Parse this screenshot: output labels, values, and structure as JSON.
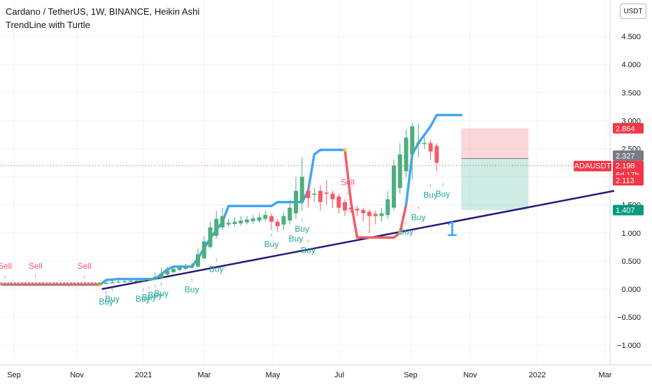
{
  "header": {
    "title": "Cardano / TetherUS, 1W, BINANCE, Heikin Ashi",
    "indicator": "TrendLine with Turtle",
    "currency": "USDT"
  },
  "chart_data": {
    "type": "candlestick",
    "symbol": "ADAUSDT",
    "y_ticks": [
      4.5,
      4.0,
      3.5,
      3.0,
      2.5,
      2.0,
      1.5,
      1.0,
      0.5,
      0.0,
      -0.5,
      -1.0
    ],
    "y_tick_labels": [
      "4.500",
      "4.000",
      "3.500",
      "3.000",
      "2.500",
      "2.000",
      "1.500",
      "1.000",
      "0.500",
      "0.000",
      "−0.500",
      "−1.000"
    ],
    "ylim": [
      -1.3,
      5.2
    ],
    "x_labels": [
      "Sep",
      "Nov",
      "2021",
      "Mar",
      "May",
      "Jul",
      "Sep",
      "Nov",
      "2022",
      "Mar"
    ],
    "price_tags": {
      "target": "2.864",
      "entry": "2.327",
      "last_symbol": "ADAUSDT",
      "last_price": "2.198",
      "countdown": "6d 17h",
      "open": "2.113",
      "stop": "1.407"
    },
    "candles": [
      {
        "o": 0.09,
        "c": 0.09,
        "h": 0.1,
        "l": 0.08
      },
      {
        "o": 0.09,
        "c": 0.09,
        "h": 0.1,
        "l": 0.08
      },
      {
        "o": 0.09,
        "c": 0.09,
        "h": 0.1,
        "l": 0.08
      },
      {
        "o": 0.09,
        "c": 0.09,
        "h": 0.1,
        "l": 0.08
      },
      {
        "o": 0.09,
        "c": 0.09,
        "h": 0.1,
        "l": 0.08
      },
      {
        "o": 0.09,
        "c": 0.09,
        "h": 0.1,
        "l": 0.08
      },
      {
        "o": 0.09,
        "c": 0.09,
        "h": 0.1,
        "l": 0.08
      },
      {
        "o": 0.09,
        "c": 0.09,
        "h": 0.1,
        "l": 0.08
      },
      {
        "o": 0.09,
        "c": 0.09,
        "h": 0.1,
        "l": 0.08
      },
      {
        "o": 0.09,
        "c": 0.09,
        "h": 0.1,
        "l": 0.08
      },
      {
        "o": 0.09,
        "c": 0.09,
        "h": 0.1,
        "l": 0.08
      },
      {
        "o": 0.09,
        "c": 0.09,
        "h": 0.1,
        "l": 0.08
      },
      {
        "o": 0.09,
        "c": 0.09,
        "h": 0.1,
        "l": 0.08
      },
      {
        "o": 0.09,
        "c": 0.09,
        "h": 0.1,
        "l": 0.08
      },
      {
        "o": 0.09,
        "c": 0.09,
        "h": 0.1,
        "l": 0.08
      },
      {
        "o": 0.09,
        "c": 0.09,
        "h": 0.1,
        "l": 0.08
      },
      {
        "o": 0.09,
        "c": 0.1,
        "h": 0.11,
        "l": 0.08
      },
      {
        "o": 0.1,
        "c": 0.11,
        "h": 0.13,
        "l": 0.09
      },
      {
        "o": 0.11,
        "c": 0.12,
        "h": 0.15,
        "l": 0.1
      },
      {
        "o": 0.12,
        "c": 0.13,
        "h": 0.16,
        "l": 0.11
      },
      {
        "o": 0.13,
        "c": 0.14,
        "h": 0.17,
        "l": 0.12
      },
      {
        "o": 0.14,
        "c": 0.15,
        "h": 0.17,
        "l": 0.13
      },
      {
        "o": 0.15,
        "c": 0.15,
        "h": 0.17,
        "l": 0.14
      },
      {
        "o": 0.15,
        "c": 0.16,
        "h": 0.18,
        "l": 0.14
      },
      {
        "o": 0.16,
        "c": 0.18,
        "h": 0.2,
        "l": 0.15
      },
      {
        "o": 0.18,
        "c": 0.22,
        "h": 0.3,
        "l": 0.17
      },
      {
        "o": 0.2,
        "c": 0.28,
        "h": 0.38,
        "l": 0.19
      },
      {
        "o": 0.26,
        "c": 0.33,
        "h": 0.4,
        "l": 0.24
      },
      {
        "o": 0.3,
        "c": 0.36,
        "h": 0.42,
        "l": 0.29
      },
      {
        "o": 0.34,
        "c": 0.38,
        "h": 0.42,
        "l": 0.32
      },
      {
        "o": 0.36,
        "c": 0.4,
        "h": 0.45,
        "l": 0.34
      },
      {
        "o": 0.38,
        "c": 0.42,
        "h": 0.46,
        "l": 0.36
      },
      {
        "o": 0.4,
        "c": 0.62,
        "h": 0.72,
        "l": 0.38
      },
      {
        "o": 0.55,
        "c": 0.85,
        "h": 0.95,
        "l": 0.52
      },
      {
        "o": 0.75,
        "c": 1.1,
        "h": 1.2,
        "l": 0.72
      },
      {
        "o": 0.95,
        "c": 1.25,
        "h": 1.4,
        "l": 0.9
      },
      {
        "o": 1.1,
        "c": 1.3,
        "h": 1.45,
        "l": 1.05
      },
      {
        "o": 1.15,
        "c": 1.18,
        "h": 1.25,
        "l": 1.1
      },
      {
        "o": 1.16,
        "c": 1.2,
        "h": 1.28,
        "l": 1.12
      },
      {
        "o": 1.17,
        "c": 1.22,
        "h": 1.3,
        "l": 1.13
      },
      {
        "o": 1.19,
        "c": 1.24,
        "h": 1.3,
        "l": 1.15
      },
      {
        "o": 1.21,
        "c": 1.26,
        "h": 1.32,
        "l": 1.16
      },
      {
        "o": 1.22,
        "c": 1.28,
        "h": 1.35,
        "l": 1.18
      },
      {
        "o": 1.25,
        "c": 1.32,
        "h": 1.4,
        "l": 1.2
      },
      {
        "o": 1.3,
        "c": 1.2,
        "h": 1.35,
        "l": 1.05
      },
      {
        "o": 1.2,
        "c": 1.12,
        "h": 1.25,
        "l": 1.02
      },
      {
        "o": 1.15,
        "c": 1.3,
        "h": 1.38,
        "l": 1.05
      },
      {
        "o": 1.22,
        "c": 1.45,
        "h": 1.6,
        "l": 1.15
      },
      {
        "o": 1.35,
        "c": 1.75,
        "h": 2.0,
        "l": 1.25
      },
      {
        "o": 1.55,
        "c": 2.0,
        "h": 2.35,
        "l": 1.4
      },
      {
        "o": 1.75,
        "c": 1.62,
        "h": 1.85,
        "l": 1.45
      },
      {
        "o": 1.68,
        "c": 1.7,
        "h": 1.8,
        "l": 1.55
      },
      {
        "o": 1.75,
        "c": 1.55,
        "h": 1.85,
        "l": 1.4
      },
      {
        "o": 1.72,
        "c": 1.7,
        "h": 1.95,
        "l": 1.5
      },
      {
        "o": 1.7,
        "c": 1.6,
        "h": 1.75,
        "l": 1.45
      },
      {
        "o": 1.65,
        "c": 1.45,
        "h": 1.7,
        "l": 1.35
      },
      {
        "o": 1.55,
        "c": 1.4,
        "h": 1.6,
        "l": 1.3
      },
      {
        "o": 1.45,
        "c": 1.42,
        "h": 1.5,
        "l": 1.35
      },
      {
        "o": 1.43,
        "c": 1.4,
        "h": 1.48,
        "l": 1.3
      },
      {
        "o": 1.41,
        "c": 1.35,
        "h": 1.45,
        "l": 1.2
      },
      {
        "o": 1.38,
        "c": 1.3,
        "h": 1.42,
        "l": 1.0
      },
      {
        "o": 1.34,
        "c": 1.3,
        "h": 1.4,
        "l": 1.15
      },
      {
        "o": 1.3,
        "c": 1.35,
        "h": 1.45,
        "l": 1.2
      },
      {
        "o": 1.32,
        "c": 1.6,
        "h": 1.75,
        "l": 1.25
      },
      {
        "o": 1.45,
        "c": 2.2,
        "h": 2.3,
        "l": 1.4
      },
      {
        "o": 1.8,
        "c": 2.4,
        "h": 2.6,
        "l": 1.7
      },
      {
        "o": 2.1,
        "c": 2.7,
        "h": 2.85,
        "l": 2.0
      },
      {
        "o": 2.4,
        "c": 2.9,
        "h": 2.95,
        "l": 1.95
      },
      {
        "o": 2.6,
        "c": 2.6,
        "h": 2.95,
        "l": 2.35
      },
      {
        "o": 2.6,
        "c": 2.6,
        "h": 2.7,
        "l": 2.5
      },
      {
        "o": 2.6,
        "c": 2.45,
        "h": 2.65,
        "l": 2.3
      },
      {
        "o": 2.55,
        "c": 2.25,
        "h": 2.6,
        "l": 2.1
      }
    ],
    "turtle_upper": [
      [
        0,
        0.08
      ],
      [
        16,
        0.08
      ],
      [
        17,
        0.16
      ],
      [
        19,
        0.18
      ],
      [
        25,
        0.18
      ],
      [
        27,
        0.35
      ],
      [
        28,
        0.4
      ],
      [
        31,
        0.4
      ],
      [
        32,
        0.55
      ],
      [
        34,
        0.9
      ],
      [
        36,
        1.2
      ],
      [
        37,
        1.48
      ],
      [
        44,
        1.48
      ],
      [
        45,
        1.55
      ],
      [
        49,
        1.55
      ],
      [
        50,
        1.75
      ],
      [
        51,
        2.4
      ],
      [
        52,
        2.48
      ],
      [
        56,
        2.48
      ],
      [
        57,
        1.55
      ],
      [
        58,
        0.92
      ],
      [
        64,
        0.92
      ],
      [
        65,
        1.0
      ],
      [
        66,
        1.5
      ],
      [
        67,
        2.4
      ],
      [
        68,
        2.6
      ],
      [
        70,
        2.9
      ],
      [
        71,
        3.1
      ],
      [
        75,
        3.1
      ]
    ],
    "turtle_upper_blue_ranges": [
      [
        16,
        56
      ],
      [
        66,
        75
      ]
    ],
    "turtle_lower_red_ranges": [
      [
        0,
        16
      ],
      [
        56,
        66
      ]
    ],
    "trendline": {
      "x0": 18,
      "y0": 0.0,
      "x1": 100,
      "y1": 1.75
    },
    "signals_buy": [
      {
        "i": 17,
        "y": -0.2
      },
      {
        "i": 18,
        "y": -0.15
      },
      {
        "i": 23,
        "y": -0.15
      },
      {
        "i": 24,
        "y": -0.12
      },
      {
        "i": 25,
        "y": -0.08
      },
      {
        "i": 26,
        "y": -0.05
      },
      {
        "i": 31,
        "y": 0.02
      },
      {
        "i": 35,
        "y": 0.38
      },
      {
        "i": 44,
        "y": 0.82
      },
      {
        "i": 48,
        "y": 0.92
      },
      {
        "i": 49,
        "y": 1.1
      },
      {
        "i": 50,
        "y": 0.72
      },
      {
        "i": 66,
        "y": 1.05
      },
      {
        "i": 68,
        "y": 1.3
      },
      {
        "i": 70,
        "y": 1.7
      },
      {
        "i": 72,
        "y": 1.72
      }
    ],
    "signals_sell": [
      {
        "i": 0,
        "y": 0.36
      },
      {
        "i": 5,
        "y": 0.36
      },
      {
        "i": 13,
        "y": 0.36
      },
      {
        "i": 56,
        "y": 1.85
      }
    ],
    "trade_box": {
      "i0": 75,
      "i1": 86,
      "target": 2.864,
      "entry": 2.327,
      "stop": 1.407
    },
    "annotation": "1"
  }
}
